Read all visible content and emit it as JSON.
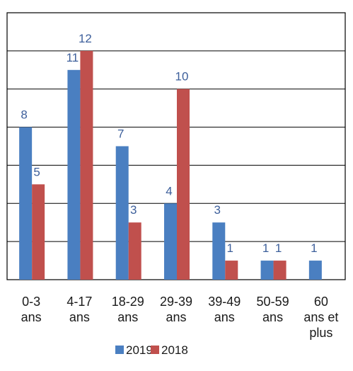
{
  "chart_data": {
    "type": "bar",
    "categories": [
      [
        "0-3",
        "ans"
      ],
      [
        "4-17",
        "ans"
      ],
      [
        "18-29",
        "ans"
      ],
      [
        "29-39",
        "ans"
      ],
      [
        "39-49",
        "ans"
      ],
      [
        "50-59",
        "ans"
      ],
      [
        "60",
        "ans et",
        "plus"
      ]
    ],
    "series": [
      {
        "name": "2019",
        "color": "#4a7fc1",
        "values": [
          8,
          11,
          7,
          4,
          3,
          1,
          1
        ]
      },
      {
        "name": "2018",
        "color": "#c0504d",
        "values": [
          5,
          12,
          3,
          10,
          1,
          1,
          0
        ]
      }
    ],
    "data_labels": {
      "2019": [
        "8",
        "11",
        "7",
        "4",
        "3",
        "1",
        "1"
      ],
      "2018": [
        "5",
        "12",
        "3",
        "10",
        "1",
        "1",
        ""
      ]
    },
    "ylim": [
      0,
      14
    ],
    "ytick_step": 2,
    "grid": true,
    "legend_position": "bottom",
    "title": "",
    "xlabel": "",
    "ylabel": ""
  }
}
